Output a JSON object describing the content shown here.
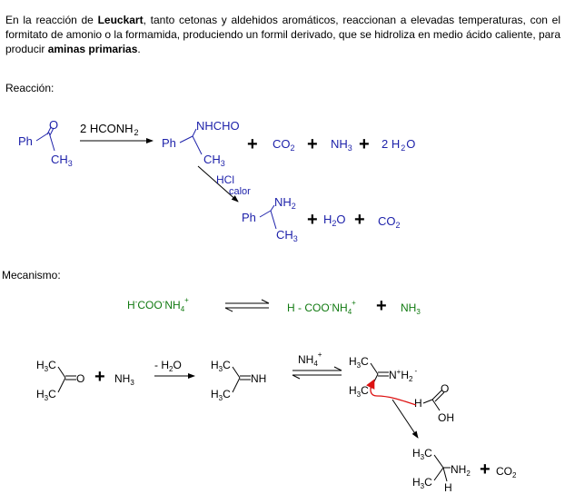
{
  "intro": {
    "p1": "En la reacción de ",
    "b1": "Leuckart",
    "p2": ", tanto cetonas y aldehidos aromáticos, reaccionan a elevadas temperaturas, con el formitato de amonio o la formamida, produciendo un formil derivado, que se hidroliza en medio ácido caliente, para producir ",
    "b2": "aminas primarias",
    "p3": "."
  },
  "labels": {
    "reaccion": "Reacción:",
    "mecanismo": "Mecanismo:"
  },
  "reaction": {
    "ph": "Ph",
    "o": "O",
    "ch3": "CH",
    "sub3": "3",
    "sub2": "2",
    "reagent": "2 HCONH",
    "nhcho": "NHCHO",
    "co": "CO",
    "nh": "NH",
    "h": "H",
    "o_tail": "O",
    "two_h": "2 H",
    "hcl": "HCl",
    "calor": "calor",
    "plus": "+"
  },
  "mechanism": {
    "h": "H",
    "sup_minus": "-",
    "sup_plus": "+",
    "coo": "COO",
    "nh": "NH",
    "sub4": "4",
    "h_coo": "H - COO",
    "nh3": "NH",
    "sub3": "3",
    "c": "C",
    "o": "O",
    "minus_h2o": "- H",
    "sub2": "2",
    "o_tail": "O",
    "n": "N",
    "oh": "OH",
    "co": "CO"
  },
  "colors": {
    "blue": "#1e22aa",
    "green": "#117a11",
    "red": "#dd1111"
  }
}
